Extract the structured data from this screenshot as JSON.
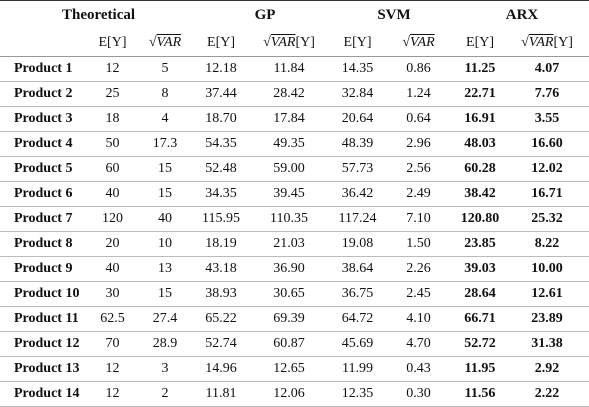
{
  "table": {
    "groups": [
      "Theoretical",
      "GP",
      "SVM",
      "ARX"
    ],
    "subheaders": [
      "E[Y]",
      "√VAR",
      "E[Y]",
      "√VAR[Y]",
      "E[Y]",
      "√VAR",
      "E[Y]",
      "√VAR[Y]"
    ],
    "rows": [
      [
        "Product 1",
        "12",
        "5",
        "12.18",
        "11.84",
        "14.35",
        "0.86",
        "11.25",
        "4.07"
      ],
      [
        "Product 2",
        "25",
        "8",
        "37.44",
        "28.42",
        "32.84",
        "1.24",
        "22.71",
        "7.76"
      ],
      [
        "Product 3",
        "18",
        "4",
        "18.70",
        "17.84",
        "20.64",
        "0.64",
        "16.91",
        "3.55"
      ],
      [
        "Product 4",
        "50",
        "17.3",
        "54.35",
        "49.35",
        "48.39",
        "2.96",
        "48.03",
        "16.60"
      ],
      [
        "Product 5",
        "60",
        "15",
        "52.48",
        "59.00",
        "57.73",
        "2.56",
        "60.28",
        "12.02"
      ],
      [
        "Product 6",
        "40",
        "15",
        "34.35",
        "39.45",
        "36.42",
        "2.49",
        "38.42",
        "16.71"
      ],
      [
        "Product 7",
        "120",
        "40",
        "115.95",
        "110.35",
        "117.24",
        "7.10",
        "120.80",
        "25.32"
      ],
      [
        "Product 8",
        "20",
        "10",
        "18.19",
        "21.03",
        "19.08",
        "1.50",
        "23.85",
        "8.22"
      ],
      [
        "Product 9",
        "40",
        "13",
        "43.18",
        "36.90",
        "38.64",
        "2.26",
        "39.03",
        "10.00"
      ],
      [
        "Product 10",
        "30",
        "15",
        "38.93",
        "30.65",
        "36.75",
        "2.45",
        "28.64",
        "12.61"
      ],
      [
        "Product 11",
        "62.5",
        "27.4",
        "65.22",
        "69.39",
        "64.72",
        "4.10",
        "66.71",
        "23.89"
      ],
      [
        "Product 12",
        "70",
        "28.9",
        "52.74",
        "60.87",
        "45.69",
        "4.70",
        "52.72",
        "31.38"
      ],
      [
        "Product 13",
        "12",
        "3",
        "14.96",
        "12.65",
        "11.99",
        "0.43",
        "11.95",
        "2.92"
      ],
      [
        "Product 14",
        "12",
        "2",
        "11.81",
        "12.06",
        "12.35",
        "0.30",
        "11.56",
        "2.22"
      ]
    ]
  }
}
